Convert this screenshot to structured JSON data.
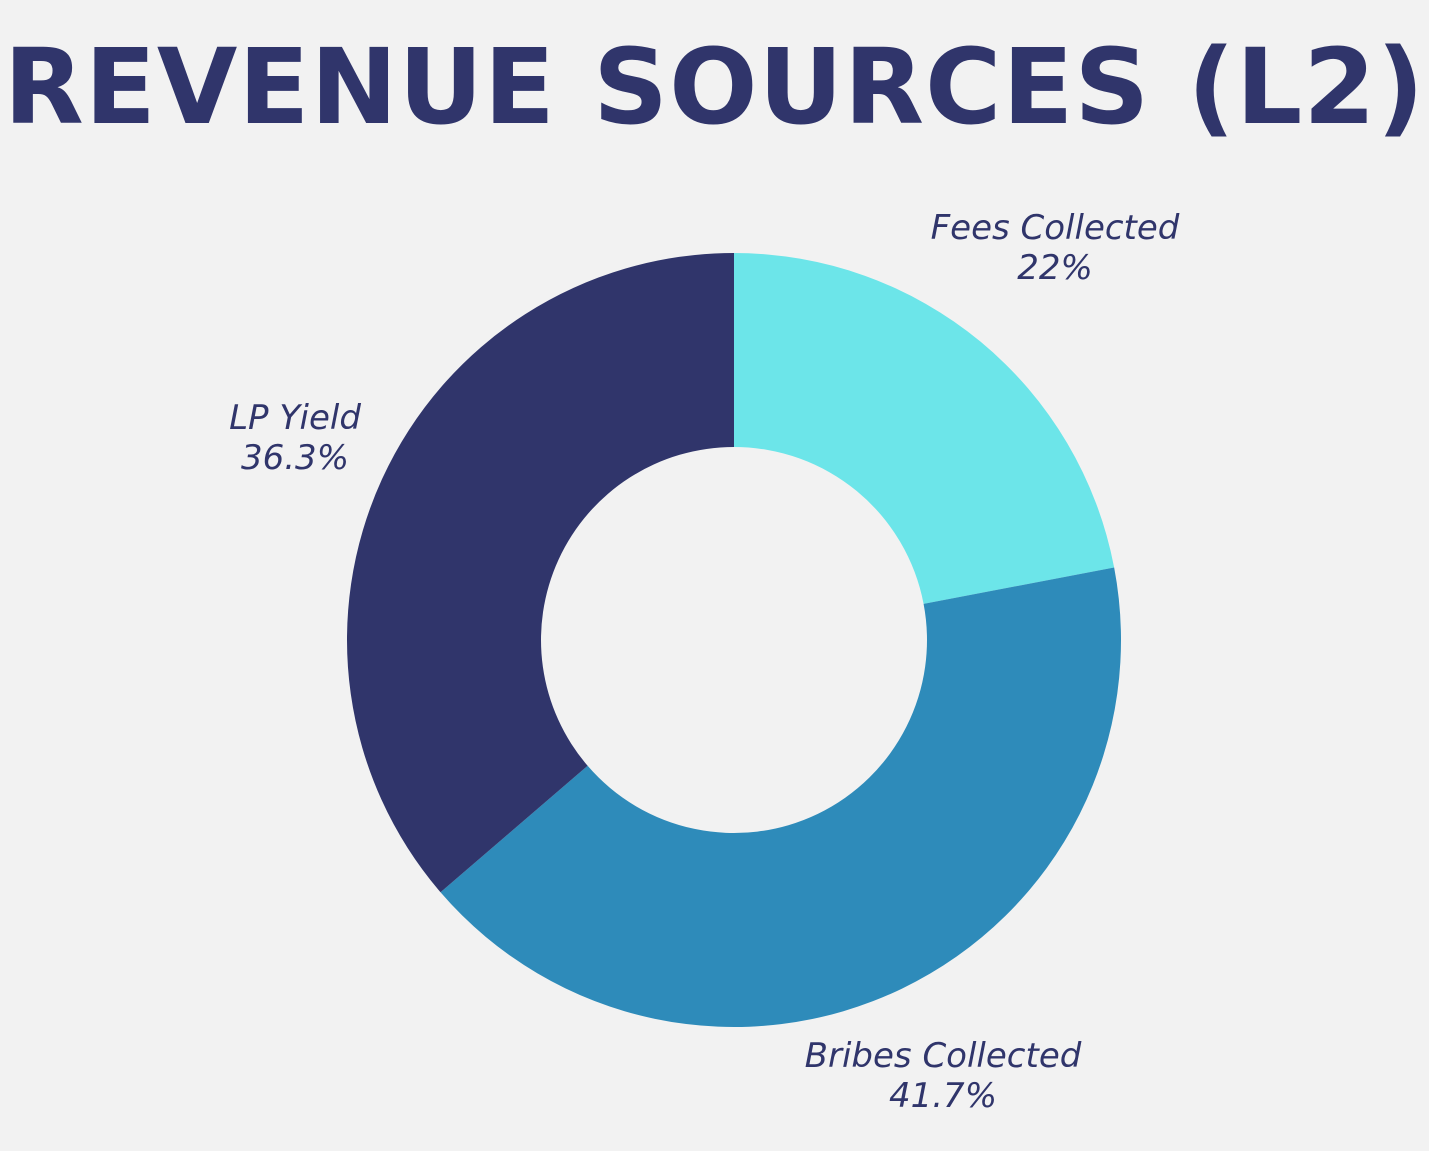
{
  "chart_data": {
    "type": "pie",
    "title": "REVENUE SOURCES (L2)",
    "hole": true,
    "start_angle_deg": 0,
    "direction": "clockwise",
    "slices": [
      {
        "label": "Fees Collected",
        "value": 22,
        "value_label": "22%",
        "color": "#6ce5e9"
      },
      {
        "label": "Bribes Collected",
        "value": 41.7,
        "value_label": "41.7%",
        "color": "#2e8bba"
      },
      {
        "label": "LP Yield",
        "value": 36.3,
        "value_label": "36.3%",
        "color": "#30356b"
      }
    ]
  },
  "colors": {
    "background": "#f2f2f2",
    "text": "#30356b"
  }
}
